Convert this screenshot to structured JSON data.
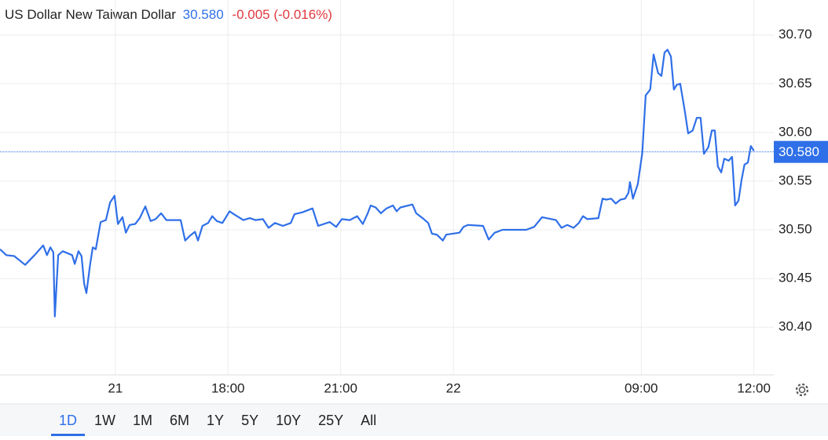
{
  "chart_data": {
    "type": "line",
    "title": "US Dollar New Taiwan Dollar",
    "price": {
      "value": 30.58,
      "label": "30.580"
    },
    "change": "-0.005 (-0.016%)",
    "color": "#2f6fe8",
    "x": [
      -0.07,
      0.1,
      0.31,
      0.6,
      0.85,
      1.08,
      1.18,
      1.27,
      1.35,
      1.39,
      1.48,
      1.6,
      1.85,
      1.92,
      2.02,
      2.1,
      2.17,
      2.23,
      2.33,
      2.4,
      2.48,
      2.61,
      2.75,
      2.86,
      2.98,
      3.07,
      3.19,
      3.28,
      3.38,
      3.53,
      3.65,
      3.8,
      3.94,
      4.07,
      4.22,
      4.36,
      4.74,
      4.86,
      4.99,
      5.12,
      5.2,
      5.32,
      5.47,
      5.58,
      5.7,
      5.85,
      6.04,
      6.2,
      6.41,
      6.58,
      6.73,
      6.93,
      7.08,
      7.25,
      7.46,
      7.67,
      7.77,
      7.98,
      8.25,
      8.4,
      8.71,
      8.88,
      9.03,
      9.24,
      9.44,
      9.59,
      9.72,
      9.8,
      9.93,
      10.07,
      10.22,
      10.39,
      10.49,
      10.59,
      10.91,
      11.01,
      11.18,
      11.33,
      11.43,
      11.56,
      11.72,
      11.81,
      12.16,
      12.27,
      12.39,
      12.79,
      12.94,
      13.1,
      13.31,
      13.94,
      14.15,
      14.36,
      14.73,
      14.88,
      15.03,
      15.2,
      15.34,
      15.45,
      15.57,
      15.86,
      15.97,
      16.07,
      16.2,
      16.32,
      16.45,
      16.57,
      16.66,
      16.7,
      16.78,
      16.91,
      17.03,
      17.12,
      17.24,
      17.33,
      17.45,
      17.54,
      17.62,
      17.7,
      17.79,
      17.87,
      17.95,
      18.04,
      18.16,
      18.25,
      18.37,
      18.48,
      18.58,
      18.67,
      18.79,
      18.88,
      18.96,
      19.04,
      19.13,
      19.21,
      19.33,
      19.42,
      19.5,
      19.59,
      19.67,
      19.75,
      19.84,
      19.92,
      20.0
    ],
    "values": [
      30.48,
      30.474,
      30.473,
      30.464,
      30.474,
      30.484,
      30.474,
      30.482,
      30.477,
      30.411,
      30.474,
      30.478,
      30.474,
      30.465,
      30.478,
      30.473,
      30.445,
      30.435,
      30.465,
      30.482,
      30.48,
      30.508,
      30.51,
      30.528,
      30.535,
      30.506,
      30.513,
      30.497,
      30.505,
      30.506,
      30.512,
      30.524,
      30.509,
      30.511,
      30.517,
      30.51,
      30.51,
      30.489,
      30.494,
      30.498,
      30.489,
      30.504,
      30.507,
      30.514,
      30.509,
      30.507,
      30.519,
      30.515,
      30.51,
      30.512,
      30.51,
      30.511,
      30.502,
      30.507,
      30.504,
      30.507,
      30.516,
      30.518,
      30.522,
      30.504,
      30.508,
      30.503,
      30.511,
      30.51,
      30.514,
      30.506,
      30.517,
      30.525,
      30.523,
      30.517,
      30.522,
      30.525,
      30.519,
      30.523,
      30.526,
      30.517,
      30.512,
      30.507,
      30.496,
      30.495,
      30.489,
      30.495,
      30.497,
      30.503,
      30.505,
      30.504,
      30.49,
      30.497,
      30.5,
      30.5,
      30.503,
      30.513,
      30.51,
      30.502,
      30.505,
      30.502,
      30.507,
      30.514,
      30.511,
      30.512,
      30.532,
      30.531,
      30.532,
      30.527,
      30.531,
      30.532,
      30.538,
      30.549,
      30.532,
      30.547,
      30.579,
      30.638,
      30.644,
      30.68,
      30.661,
      30.658,
      30.682,
      30.685,
      30.678,
      30.644,
      30.649,
      30.65,
      30.622,
      30.599,
      30.602,
      30.615,
      30.615,
      30.578,
      30.585,
      30.602,
      30.602,
      30.565,
      30.559,
      30.573,
      30.571,
      30.575,
      30.525,
      30.53,
      30.551,
      30.567,
      30.569,
      30.586,
      30.581
    ],
    "xlim": [
      -0.07,
      20.53
    ],
    "xticks": [
      {
        "value": 3,
        "label": "21"
      },
      {
        "value": 6,
        "label": "18:00"
      },
      {
        "value": 9,
        "label": "21:00"
      },
      {
        "value": 12,
        "label": "22"
      },
      {
        "value": 17,
        "label": "09:00"
      },
      {
        "value": 20,
        "label": "12:00"
      }
    ],
    "ylim": [
      30.351,
      30.736
    ],
    "yticks": [
      {
        "value": 30.4,
        "label": "30.40"
      },
      {
        "value": 30.45,
        "label": "30.45"
      },
      {
        "value": 30.5,
        "label": "30.50"
      },
      {
        "value": 30.55,
        "label": "30.55"
      },
      {
        "value": 30.6,
        "label": "30.60"
      },
      {
        "value": 30.65,
        "label": "30.65"
      },
      {
        "value": 30.7,
        "label": "30.70"
      }
    ],
    "grid": true,
    "ranges": [
      "1D",
      "1W",
      "1M",
      "6M",
      "1Y",
      "5Y",
      "10Y",
      "25Y",
      "All"
    ],
    "active_range": 0
  }
}
